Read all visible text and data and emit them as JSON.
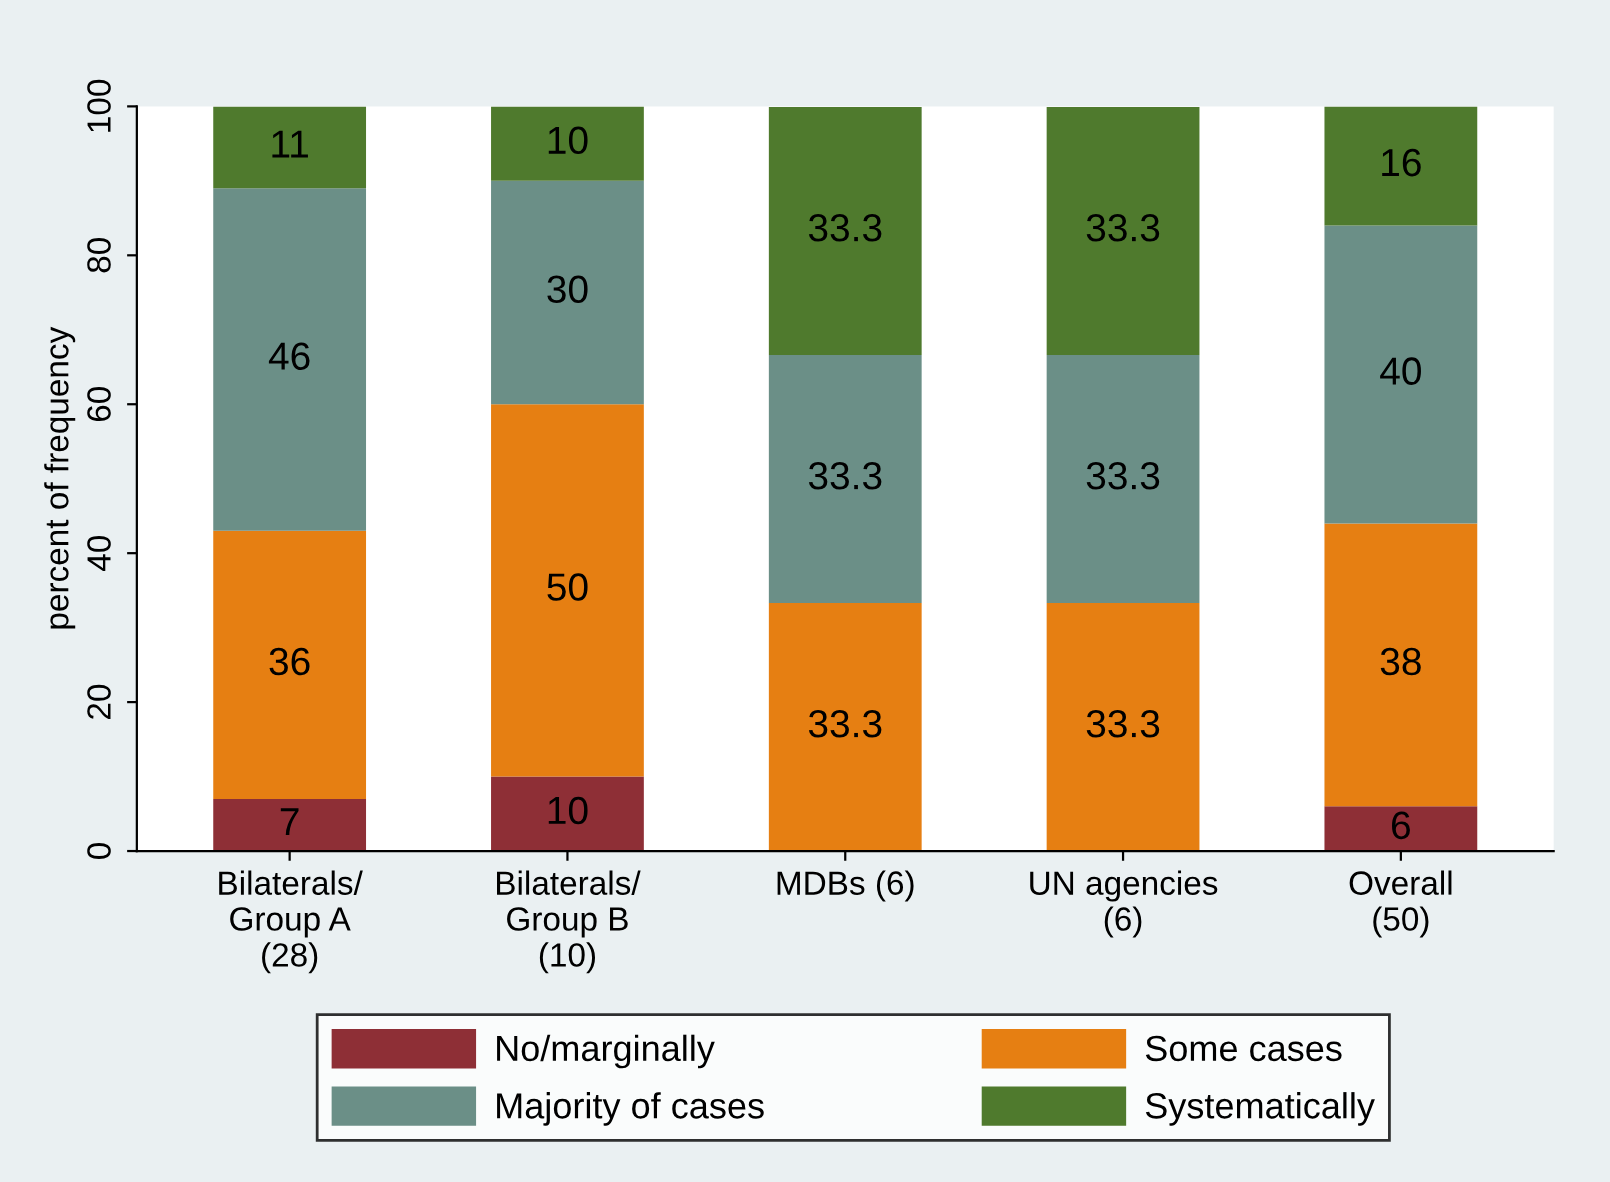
{
  "chart_data": {
    "type": "bar",
    "stacked": true,
    "ylabel": "percent of frequency",
    "categories": [
      "Bilaterals/\nGroup A\n(28)",
      "Bilaterals/\nGroup B\n(10)",
      "MDBs (6)",
      "UN agencies\n(6)",
      "Overall\n(50)"
    ],
    "series": [
      {
        "name": "No/marginally",
        "color": "#8e2f36",
        "values": [
          7,
          10,
          0,
          0,
          6
        ],
        "value_labels": [
          "7",
          "10",
          null,
          null,
          "6"
        ]
      },
      {
        "name": "Some cases",
        "color": "#e67f12",
        "values": [
          36,
          50,
          33.3,
          33.3,
          38
        ],
        "value_labels": [
          "36",
          "50",
          "33.3",
          "33.3",
          "38"
        ]
      },
      {
        "name": "Majority of cases",
        "color": "#6b8f87",
        "values": [
          46,
          30,
          33.3,
          33.3,
          40
        ],
        "value_labels": [
          "46",
          "30",
          "33.3",
          "33.3",
          "40"
        ]
      },
      {
        "name": "Systematically",
        "color": "#4f7a2d",
        "values": [
          11,
          10,
          33.3,
          33.3,
          16
        ],
        "value_labels": [
          "11",
          "10",
          "33.3",
          "33.3",
          "16"
        ]
      }
    ],
    "ylim": [
      0,
      100
    ],
    "yticks": [
      0,
      20,
      40,
      60,
      80,
      100
    ],
    "grid": false,
    "legend": "bottom"
  }
}
